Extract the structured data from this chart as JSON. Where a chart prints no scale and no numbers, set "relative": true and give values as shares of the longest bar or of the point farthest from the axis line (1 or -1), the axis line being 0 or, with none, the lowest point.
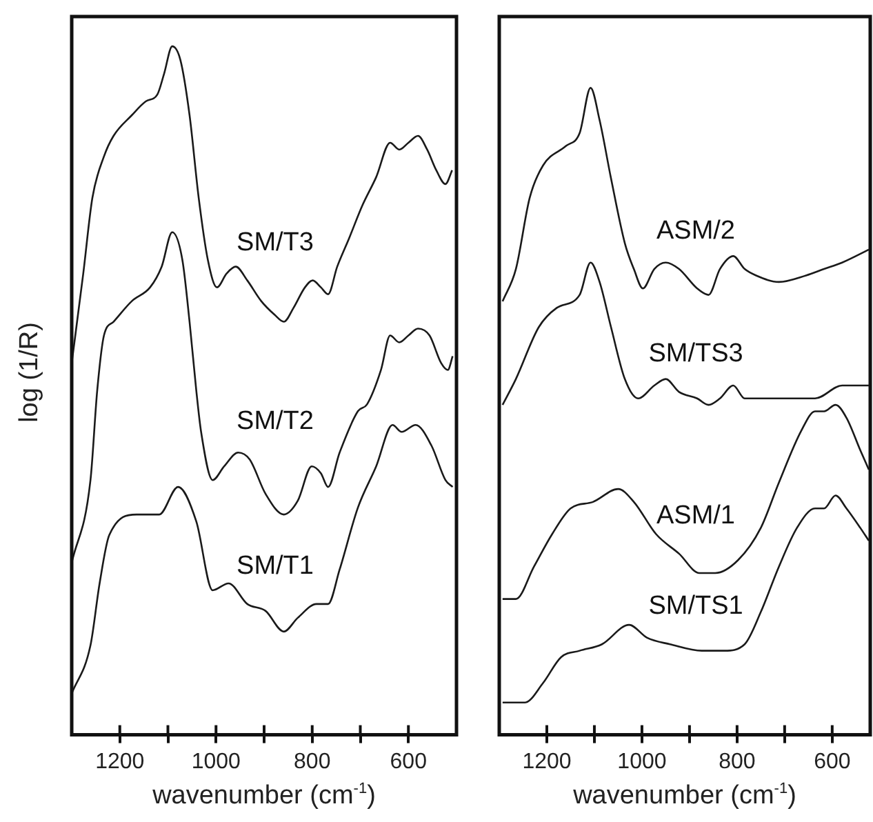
{
  "chart_data": [
    {
      "type": "line",
      "ylabel": "log (1/R)",
      "xlabel": "wavenumber (cm$^{-1}$)",
      "relative": true,
      "tick_labels": "x",
      "xlim": [
        1300,
        500
      ],
      "xticks": [
        1200,
        {
          "value": 1100,
          "label": null
        },
        1000,
        {
          "value": 900,
          "label": null
        },
        800,
        {
          "value": 700,
          "label": null
        },
        600
      ],
      "series": [
        {
          "name": "SM/T3",
          "color": "#1a1a1a",
          "x": [
            1300,
            1276,
            1257,
            1233,
            1213,
            1175,
            1146,
            1122,
            1108,
            1091,
            1074,
            1055,
            1036,
            1017,
            998,
            978,
            959,
            935,
            906,
            878,
            859,
            839,
            815,
            799,
            782,
            767,
            748,
            724,
            695,
            667,
            638,
            619,
            600,
            580,
            561,
            542,
            523,
            509
          ],
          "values": [
            0.54,
            0.67,
            0.78,
            0.84,
            0.87,
            0.9,
            0.92,
            0.93,
            0.96,
            1.0,
            0.98,
            0.9,
            0.78,
            0.69,
            0.65,
            0.67,
            0.68,
            0.66,
            0.63,
            0.61,
            0.6,
            0.62,
            0.65,
            0.66,
            0.65,
            0.64,
            0.68,
            0.72,
            0.77,
            0.81,
            0.86,
            0.85,
            0.86,
            0.87,
            0.85,
            0.82,
            0.8,
            0.82
          ]
        },
        {
          "name": "SM/T2",
          "color": "#1a1a1a",
          "x": [
            1300,
            1261,
            1247,
            1233,
            1213,
            1175,
            1137,
            1113,
            1091,
            1070,
            1055,
            1041,
            1031,
            1007,
            983,
            954,
            930,
            897,
            859,
            830,
            801,
            782,
            767,
            743,
            705,
            686,
            657,
            638,
            619,
            600,
            580,
            556,
            532,
            518,
            508
          ],
          "values": [
            0.25,
            0.37,
            0.5,
            0.58,
            0.6,
            0.63,
            0.65,
            0.68,
            0.73,
            0.69,
            0.6,
            0.5,
            0.44,
            0.37,
            0.39,
            0.41,
            0.4,
            0.35,
            0.32,
            0.34,
            0.39,
            0.38,
            0.36,
            0.41,
            0.47,
            0.48,
            0.53,
            0.58,
            0.57,
            0.58,
            0.59,
            0.58,
            0.54,
            0.53,
            0.55
          ]
        },
        {
          "name": "SM/T1",
          "color": "#1a1a1a",
          "x": [
            1300,
            1261,
            1242,
            1222,
            1165,
            1118,
            1079,
            1041,
            1007,
            974,
            935,
            897,
            859,
            830,
            791,
            767,
            743,
            705,
            667,
            633,
            614,
            585,
            552,
            523,
            508
          ],
          "values": [
            0.06,
            0.13,
            0.22,
            0.29,
            0.32,
            0.32,
            0.36,
            0.31,
            0.21,
            0.22,
            0.19,
            0.18,
            0.15,
            0.17,
            0.19,
            0.19,
            0.24,
            0.33,
            0.39,
            0.45,
            0.44,
            0.45,
            0.42,
            0.37,
            0.36
          ]
        }
      ]
    },
    {
      "type": "line",
      "xlabel": "wavenumber (cm$^{-1}$)",
      "relative": true,
      "tick_labels": "x",
      "xlim": [
        1300,
        520
      ],
      "xticks": [
        1200,
        {
          "value": 1100,
          "label": null
        },
        1000,
        {
          "value": 900,
          "label": null
        },
        800,
        {
          "value": 700,
          "label": null
        },
        600
      ],
      "series": [
        {
          "name": "ASM/2",
          "color": "#1a1a1a",
          "x": [
            1293,
            1265,
            1236,
            1208,
            1160,
            1131,
            1108,
            1089,
            1065,
            1036,
            1017,
            998,
            974,
            950,
            922,
            884,
            860,
            836,
            808,
            784,
            760,
            712,
            655,
            617,
            579,
            523
          ],
          "values": [
            0.67,
            0.72,
            0.83,
            0.88,
            0.91,
            0.93,
            1.0,
            0.95,
            0.86,
            0.76,
            0.72,
            0.69,
            0.72,
            0.73,
            0.72,
            0.69,
            0.68,
            0.72,
            0.74,
            0.72,
            0.71,
            0.7,
            0.71,
            0.72,
            0.73,
            0.75
          ]
        },
        {
          "name": "SM/TS3",
          "color": "#1a1a1a",
          "x": [
            1293,
            1265,
            1217,
            1179,
            1131,
            1108,
            1089,
            1065,
            1036,
            1008,
            974,
            950,
            922,
            884,
            860,
            836,
            808,
            784,
            760,
            693,
            636,
            579,
            523
          ],
          "values": [
            0.51,
            0.55,
            0.63,
            0.66,
            0.68,
            0.73,
            0.7,
            0.63,
            0.55,
            0.52,
            0.54,
            0.55,
            0.53,
            0.52,
            0.51,
            0.52,
            0.54,
            0.52,
            0.52,
            0.52,
            0.52,
            0.54,
            0.54
          ]
        },
        {
          "name": "ASM/1",
          "color": "#1a1a1a",
          "x": [
            1293,
            1265,
            1227,
            1189,
            1150,
            1103,
            1050,
            1017,
            970,
            922,
            879,
            846,
            798,
            750,
            712,
            665,
            636,
            617,
            593,
            570,
            541,
            523
          ],
          "values": [
            0.21,
            0.21,
            0.26,
            0.31,
            0.35,
            0.36,
            0.38,
            0.36,
            0.31,
            0.28,
            0.25,
            0.25,
            0.27,
            0.32,
            0.39,
            0.47,
            0.5,
            0.5,
            0.51,
            0.49,
            0.44,
            0.41
          ]
        },
        {
          "name": "SM/TS1",
          "color": "#1a1a1a",
          "x": [
            1293,
            1246,
            1208,
            1170,
            1131,
            1084,
            1027,
            989,
            941,
            874,
            827,
            784,
            750,
            712,
            674,
            636,
            617,
            593,
            570,
            541,
            523
          ],
          "values": [
            0.05,
            0.05,
            0.08,
            0.12,
            0.13,
            0.14,
            0.17,
            0.15,
            0.14,
            0.13,
            0.13,
            0.14,
            0.19,
            0.26,
            0.32,
            0.35,
            0.35,
            0.37,
            0.35,
            0.32,
            0.3
          ]
        }
      ]
    }
  ]
}
